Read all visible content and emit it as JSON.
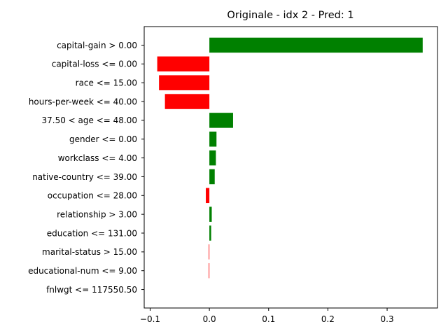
{
  "chart_data": {
    "type": "bar",
    "orientation": "horizontal",
    "title": "Originale - idx 2 - Pred: 1",
    "xlabel": "",
    "ylabel": "",
    "xlim": [
      -0.11,
      0.385
    ],
    "xticks": [
      -0.1,
      0.0,
      0.1,
      0.2,
      0.3
    ],
    "xtick_labels": [
      "−0.1",
      "0.0",
      "0.1",
      "0.2",
      "0.3"
    ],
    "grid": false,
    "positive_color": "#008000",
    "negative_color": "#ff0000",
    "categories": [
      "capital-gain > 0.00",
      "capital-loss <= 0.00",
      "race <= 15.00",
      "hours-per-week <= 40.00",
      "37.50 < age <= 48.00",
      "gender <= 0.00",
      "workclass <= 4.00",
      "native-country <= 39.00",
      "occupation <= 28.00",
      "relationship > 3.00",
      "education <= 131.00",
      "marital-status > 15.00",
      "educational-num <= 9.00",
      "fnlwgt <= 117550.50"
    ],
    "values": [
      0.36,
      -0.088,
      -0.085,
      -0.075,
      0.04,
      0.012,
      0.011,
      0.009,
      -0.006,
      0.004,
      0.003,
      -0.001,
      -0.001,
      0.0
    ]
  }
}
